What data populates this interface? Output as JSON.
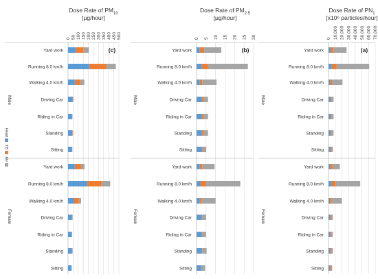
{
  "chart_data": [
    {
      "type": "bar",
      "stacked": true,
      "orientation": "horizontal",
      "panel_label": "(c)",
      "title_line1": "Dose Rate of PM",
      "title_sub": "10",
      "title_line2": "[µg/hour]",
      "xlim": [
        0,
        500
      ],
      "xticks": [
        "0",
        "50",
        "100",
        "150",
        "200",
        "250",
        "300",
        "350",
        "400",
        "450",
        "500"
      ],
      "categories": [
        "Yard work",
        "Running 8.0 km/h",
        "Walking 4.0 km/h",
        "Driving Car",
        "Riding in Car",
        "Standing",
        "Sitting",
        "Yard work",
        "Running 8.0 km/h",
        "Walking 4.0 km/h",
        "Driving Car",
        "Riding in Car",
        "Standing",
        "Sitting"
      ],
      "groups": [
        {
          "name": "Male",
          "range": [
            0,
            6
          ]
        },
        {
          "name": "Female",
          "range": [
            7,
            13
          ]
        }
      ],
      "series": [
        {
          "name": "Head",
          "values": [
            75,
            205,
            65,
            45,
            38,
            42,
            38,
            65,
            185,
            58,
            38,
            35,
            38,
            32
          ]
        },
        {
          "name": "TB",
          "values": [
            75,
            170,
            55,
            5,
            3,
            4,
            3,
            60,
            145,
            48,
            4,
            3,
            4,
            3
          ]
        },
        {
          "name": "Alv",
          "values": [
            55,
            95,
            40,
            4,
            3,
            4,
            2,
            37,
            85,
            22,
            4,
            2,
            4,
            2
          ]
        }
      ],
      "legend": [
        "Head",
        "TB",
        "Alv"
      ],
      "legend_position": "left, vertical"
    },
    {
      "type": "bar",
      "stacked": true,
      "orientation": "horizontal",
      "panel_label": "(b)",
      "title_line1": "Dose Rate of PM",
      "title_sub": "2.5",
      "title_line2": "[µg/hour]",
      "xlim": [
        0,
        30
      ],
      "xticks": [
        "0",
        "5",
        "10",
        "15",
        "20",
        "25",
        "30"
      ],
      "categories": [
        "Yard work",
        "Running 8.0 km/h",
        "Walking 4.0 km/h",
        "Driving Car",
        "Riding in Car",
        "Standing",
        "Sitting",
        "Yard work",
        "Running 8.0 km/h",
        "Walking 4.0 km/h",
        "Driving Car",
        "Riding in Car",
        "Standing",
        "Sitting"
      ],
      "groups": [
        {
          "name": "Male",
          "range": [
            0,
            6
          ]
        },
        {
          "name": "Female",
          "range": [
            7,
            13
          ]
        }
      ],
      "series": [
        {
          "name": "Head",
          "values": [
            1.5,
            2.5,
            1.5,
            2.8,
            2.8,
            2.8,
            2.6,
            1.5,
            2.0,
            1.5,
            2.5,
            2.5,
            2.5,
            2.3
          ]
        },
        {
          "name": "TB",
          "values": [
            2.5,
            3.5,
            1.5,
            0.6,
            0.6,
            0.6,
            0.5,
            1.5,
            3.0,
            1.0,
            0.5,
            0.5,
            0.5,
            0.5
          ]
        },
        {
          "name": "Alv",
          "values": [
            9.0,
            21.0,
            7.5,
            2.6,
            2.6,
            2.6,
            2.0,
            6.5,
            18.0,
            7.5,
            2.0,
            2.0,
            2.3,
            1.7
          ]
        }
      ],
      "legend": [
        "Head",
        "TB",
        "Alv"
      ]
    },
    {
      "type": "bar",
      "stacked": true,
      "orientation": "horizontal",
      "panel_label": "(a)",
      "title_line1": "Dose Rate of PN",
      "title_sub": "1",
      "title_line2": "[x10⁶ particles/hour]",
      "xlim": [
        0,
        70000
      ],
      "xticks": [
        "0",
        "10,000",
        "20,000",
        "30,000",
        "40,000",
        "50,000",
        "60,000",
        "70,000"
      ],
      "categories": [
        "Yard work",
        "Running 8.0 km/h",
        "Walking 4.0 km/h",
        "Driving Car",
        "Riding in Car",
        "Standing",
        "Sitting",
        "Yard work",
        "Running 8.0 km/h",
        "Walking 4.0 km/h",
        "Driving Car",
        "Riding in Car",
        "Standing",
        "Sitting"
      ],
      "groups": [
        {
          "name": "Male",
          "range": [
            0,
            6
          ]
        },
        {
          "name": "Female",
          "range": [
            7,
            13
          ]
        }
      ],
      "series": [
        {
          "name": "Head",
          "values": [
            3000,
            4500,
            2500,
            3000,
            3000,
            3000,
            2800,
            2500,
            4000,
            2200,
            2500,
            2500,
            2500,
            2300
          ]
        },
        {
          "name": "TB",
          "values": [
            4000,
            7500,
            3000,
            1500,
            1500,
            1500,
            1300,
            3500,
            6500,
            2800,
            1300,
            1300,
            1300,
            1200
          ]
        },
        {
          "name": "Alv",
          "values": [
            20000,
            49000,
            15500,
            3000,
            3000,
            3000,
            2400,
            11000,
            37000,
            15000,
            2600,
            2600,
            2700,
            2000
          ]
        }
      ],
      "legend": [
        "Head",
        "TB",
        "Alv"
      ]
    }
  ],
  "colors": {
    "Head": "#5b9bd5",
    "TB": "#ed7d31",
    "Alv": "#a5a5a5",
    "grid": "#d9d9d9",
    "axis": "#bfbfbf"
  }
}
